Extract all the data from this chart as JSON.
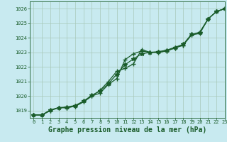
{
  "title": "Graphe pression niveau de la mer (hPa)",
  "background_color": "#c8eaf0",
  "grid_color": "#a8c8b8",
  "line_color": "#1a5c2a",
  "xlim": [
    -0.5,
    23
  ],
  "ylim": [
    1018.5,
    1026.5
  ],
  "xticks": [
    0,
    1,
    2,
    3,
    4,
    5,
    6,
    7,
    8,
    9,
    10,
    11,
    12,
    13,
    14,
    15,
    16,
    17,
    18,
    19,
    20,
    21,
    22,
    23
  ],
  "yticks": [
    1019,
    1020,
    1021,
    1022,
    1023,
    1024,
    1025,
    1026
  ],
  "series": [
    [
      1018.7,
      1018.7,
      1019.0,
      1019.2,
      1019.2,
      1019.3,
      1019.6,
      1020.0,
      1020.2,
      1020.8,
      1021.2,
      1022.5,
      1022.9,
      1023.1,
      1023.0,
      1023.0,
      1023.1,
      1023.3,
      1023.5,
      1024.2,
      1024.3,
      1025.3,
      1025.8,
      1026.0
    ],
    [
      1018.7,
      1018.7,
      1019.0,
      1019.2,
      1019.2,
      1019.3,
      1019.6,
      1020.0,
      1020.4,
      1021.0,
      1021.7,
      1021.9,
      1022.2,
      1023.2,
      1023.0,
      1023.0,
      1023.1,
      1023.3,
      1023.5,
      1024.2,
      1024.4,
      1025.3,
      1025.8,
      1026.0
    ],
    [
      1018.7,
      1018.7,
      1019.05,
      1019.2,
      1019.25,
      1019.35,
      1019.65,
      1020.05,
      1020.35,
      1020.85,
      1021.5,
      1022.15,
      1022.55,
      1022.9,
      1023.0,
      1023.05,
      1023.15,
      1023.35,
      1023.55,
      1024.25,
      1024.35,
      1025.3,
      1025.82,
      1026.0
    ]
  ],
  "marker": "+",
  "marker_size": 4,
  "line_width": 0.9,
  "title_fontsize": 7,
  "tick_fontsize": 5
}
